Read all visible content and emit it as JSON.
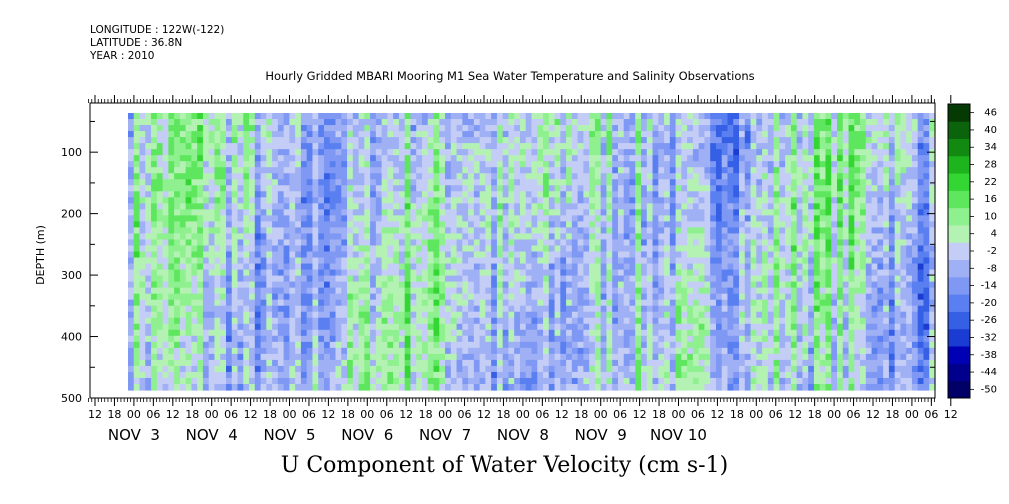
{
  "meta": {
    "longitude": "LONGITUDE : 122W(-122)",
    "latitude": "LATITUDE : 36.8N",
    "year": "YEAR : 2010"
  },
  "chart_data": {
    "type": "heatmap",
    "title": "Hourly Gridded MBARI Mooring M1 Sea Water Temperature and Salinity Observations",
    "xlabel": "U Component of Water Velocity (cm s-1)",
    "ylabel": "DEPTH (m)",
    "y_axis": {
      "range": [
        20,
        500
      ],
      "inverted": true,
      "ticks": [
        100,
        200,
        300,
        400,
        500
      ]
    },
    "x_axis": {
      "hour_labels": [
        "12",
        "18",
        "00",
        "06",
        "12",
        "18",
        "00",
        "06",
        "12",
        "18",
        "00",
        "06",
        "12",
        "18",
        "00",
        "06",
        "12",
        "18",
        "00",
        "06",
        "12",
        "18",
        "00",
        "06",
        "12",
        "18",
        "00",
        "06",
        "12",
        "18",
        "00",
        "06",
        "12",
        "18",
        "00",
        "06",
        "12",
        "18",
        "00",
        "06",
        "12",
        "18",
        "00",
        "06",
        "12"
      ],
      "day_labels": [
        {
          "label": "NOV  3",
          "hour": 12
        },
        {
          "label": "NOV  4",
          "hour": 36
        },
        {
          "label": "NOV  5",
          "hour": 60
        },
        {
          "label": "NOV  6",
          "hour": 84
        },
        {
          "label": "NOV  7",
          "hour": 108
        },
        {
          "label": "NOV  8",
          "hour": 132
        },
        {
          "label": "NOV  9",
          "hour": 156
        },
        {
          "label": "NOV 10",
          "hour": 180
        }
      ]
    },
    "colorbar": {
      "levels": [
        -50,
        -44,
        -38,
        -32,
        -26,
        -20,
        -14,
        -8,
        -2,
        4,
        10,
        16,
        22,
        28,
        34,
        40,
        46
      ],
      "tick_labels": [
        "46",
        "40",
        "34",
        "28",
        "22",
        "16",
        "10",
        "4",
        "-2",
        "-8",
        "-14",
        "-20",
        "-26",
        "-32",
        "-38",
        "-44",
        "-50"
      ],
      "colors": [
        "#000066",
        "#00008c",
        "#0000b4",
        "#1a3cd2",
        "#3560e6",
        "#5a7ff0",
        "#7e98f4",
        "#a0b0f5",
        "#c4cdf6",
        "#b4f2b4",
        "#8ef08e",
        "#5ee65e",
        "#34d634",
        "#1eb41e",
        "#128a12",
        "#0b640b",
        "#053a05"
      ]
    }
  }
}
